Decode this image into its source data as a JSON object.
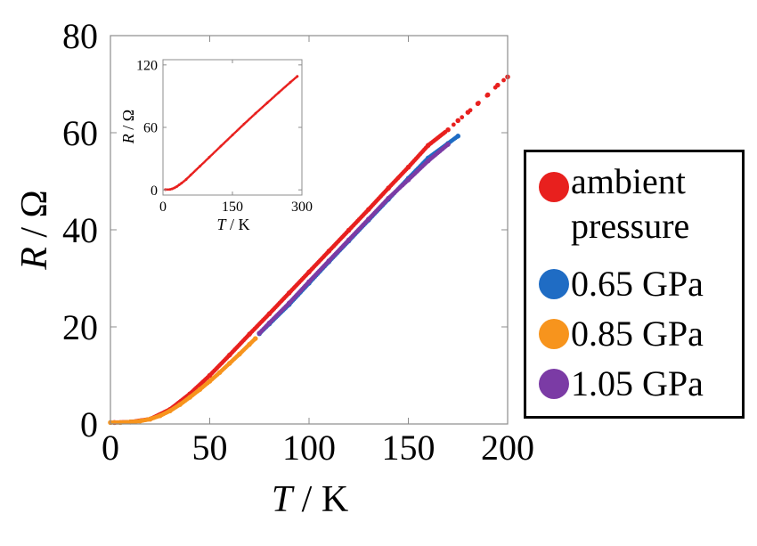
{
  "chart_data": [
    {
      "type": "scatter",
      "title": "",
      "xlabel": {
        "var": "T",
        "unit": "K"
      },
      "ylabel": {
        "var": "R",
        "unit": "Ω"
      },
      "xlim": [
        0,
        200
      ],
      "ylim": [
        0,
        80
      ],
      "xticks": [
        "0",
        "50",
        "100",
        "150",
        "200"
      ],
      "yticks": [
        "0",
        "20",
        "40",
        "60",
        "80"
      ],
      "grid": false,
      "legend_placement": "right, outside plot",
      "series": [
        {
          "name": "ambient pressure",
          "color": "#e8201e",
          "marker": "dot",
          "x": [
            2,
            10,
            20,
            30,
            40,
            50,
            60,
            70,
            80,
            90,
            100,
            110,
            120,
            130,
            140,
            150,
            160,
            170,
            175,
            180,
            185,
            190,
            195,
            200
          ],
          "y": [
            0.3,
            0.4,
            1.0,
            3.0,
            6.2,
            10.0,
            14.2,
            18.5,
            22.7,
            27.0,
            31.3,
            35.6,
            39.9,
            44.2,
            48.6,
            52.9,
            57.4,
            60.6,
            62.5,
            64.2,
            66.0,
            67.8,
            69.8,
            71.5
          ]
        },
        {
          "name": "0.65 GPa",
          "color": "#1f6cc4",
          "marker": "dot",
          "x": [
            75,
            80,
            90,
            100,
            110,
            120,
            130,
            140,
            150,
            160,
            170,
            175
          ],
          "y": [
            18.6,
            20.6,
            24.6,
            29.0,
            33.4,
            37.7,
            42.0,
            46.3,
            50.6,
            54.8,
            57.8,
            59.3
          ]
        },
        {
          "name": "0.85 GPa",
          "color": "#f7941d",
          "marker": "dot",
          "x": [
            0,
            5,
            10,
            15,
            20,
            25,
            30,
            35,
            40,
            45,
            50,
            55,
            60,
            65,
            70,
            73
          ],
          "y": [
            0.3,
            0.3,
            0.4,
            0.6,
            1.0,
            1.7,
            2.7,
            4.0,
            5.5,
            7.1,
            8.8,
            10.6,
            12.5,
            14.4,
            16.4,
            17.6
          ]
        },
        {
          "name": "1.05 GPa",
          "color": "#7b3ba5",
          "marker": "dot",
          "x": [
            75,
            80,
            90,
            100,
            110,
            120,
            130,
            140,
            150,
            160,
            170
          ],
          "y": [
            18.7,
            20.8,
            24.9,
            29.3,
            33.6,
            37.9,
            42.2,
            46.5,
            50.3,
            54.2,
            57.6
          ]
        }
      ]
    },
    {
      "type": "scatter",
      "title": "",
      "inset": true,
      "xlabel": {
        "var": "T",
        "unit": "K"
      },
      "ylabel": {
        "var": "R",
        "unit": "Ω"
      },
      "xlim": [
        0,
        300
      ],
      "ylim": [
        -5,
        125
      ],
      "xticks": [
        "0",
        "150",
        "300"
      ],
      "yticks": [
        "0",
        "60",
        "120"
      ],
      "grid": false,
      "series": [
        {
          "color": "#e8201e",
          "marker": "dot",
          "x": [
            5,
            15,
            20,
            25,
            30,
            35,
            40,
            50,
            60,
            80,
            100,
            125,
            150,
            175,
            200,
            225,
            250,
            275,
            290
          ],
          "y": [
            0.2,
            0.4,
            1.0,
            2.0,
            3.2,
            4.8,
            6.4,
            10.0,
            14.3,
            22.8,
            31.3,
            42.0,
            52.6,
            63.2,
            73.5,
            83.5,
            93.5,
            103.3,
            109.0
          ]
        }
      ]
    }
  ]
}
